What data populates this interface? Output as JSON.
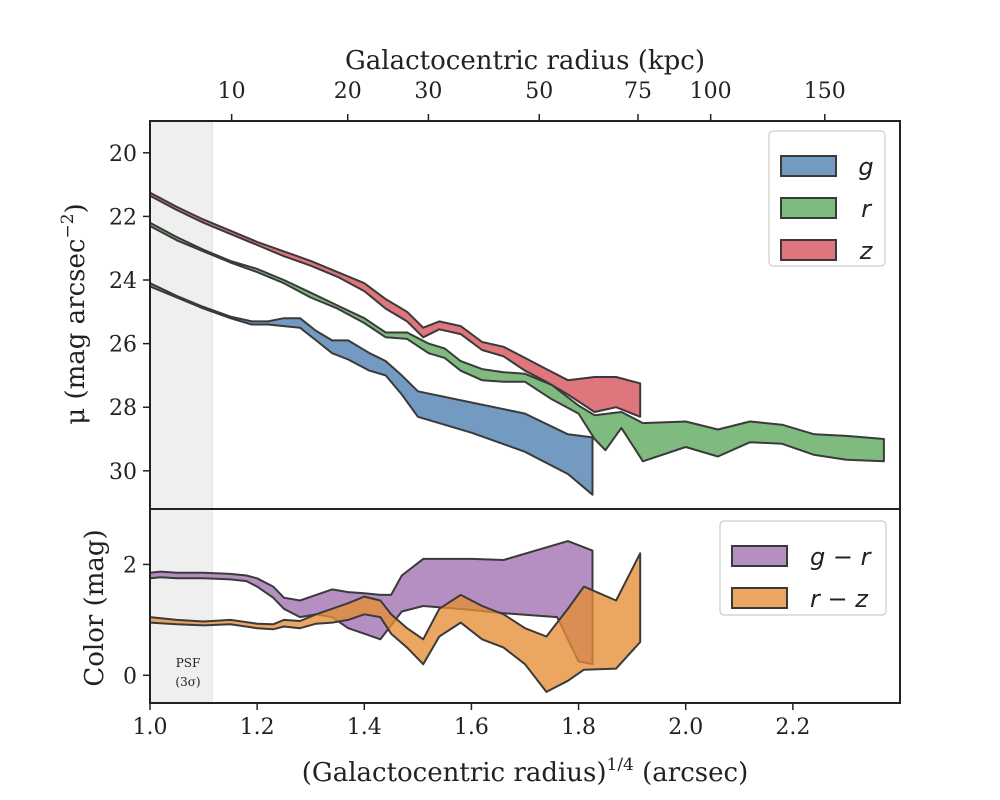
{
  "chart_data": [
    {
      "type": "area",
      "panel": "top",
      "xlabel": "(Galactocentric radius)",
      "xlabel_sup": "1/4",
      "xlabel_unit": " (arcsec)",
      "top_xlabel": "Galactocentric radius (kpc)",
      "ylabel": "μ (mag arcsec",
      "ylabel_sup": "−2",
      "ylabel_end": ")",
      "xlim": [
        1.0,
        2.4
      ],
      "ylim": [
        31.2,
        19.0
      ],
      "y_inverted": true,
      "yticks": [
        20,
        22,
        24,
        26,
        28,
        30
      ],
      "top_ticks": [
        {
          "label": "10",
          "x": 1.1524
        },
        {
          "label": "20",
          "x": 1.3691
        },
        {
          "label": "30",
          "x": 1.5197
        },
        {
          "label": "50",
          "x": 1.7266
        },
        {
          "label": "75",
          "x": 1.9109
        },
        {
          "label": "100",
          "x": 2.0466
        },
        {
          "label": "150",
          "x": 2.2596
        }
      ],
      "legend": {
        "placement": "top-right",
        "entries": [
          "g",
          "r",
          "z"
        ]
      },
      "series": [
        {
          "name": "g",
          "color": "#4c7fb0",
          "upper": [
            [
              1.0,
              24.1
            ],
            [
              1.05,
              24.5
            ],
            [
              1.1,
              24.85
            ],
            [
              1.15,
              25.15
            ],
            [
              1.19,
              25.3
            ],
            [
              1.22,
              25.3
            ],
            [
              1.25,
              25.2
            ],
            [
              1.28,
              25.2
            ],
            [
              1.31,
              25.6
            ],
            [
              1.34,
              25.9
            ],
            [
              1.37,
              25.9
            ],
            [
              1.41,
              26.3
            ],
            [
              1.44,
              26.55
            ],
            [
              1.47,
              27.0
            ],
            [
              1.5,
              27.5
            ],
            [
              1.6,
              27.85
            ],
            [
              1.7,
              28.2
            ],
            [
              1.78,
              28.85
            ],
            [
              1.826,
              28.95
            ]
          ],
          "lower": [
            [
              1.0,
              24.2
            ],
            [
              1.05,
              24.55
            ],
            [
              1.1,
              24.9
            ],
            [
              1.15,
              25.2
            ],
            [
              1.19,
              25.4
            ],
            [
              1.22,
              25.4
            ],
            [
              1.25,
              25.45
            ],
            [
              1.28,
              25.5
            ],
            [
              1.31,
              25.9
            ],
            [
              1.34,
              26.3
            ],
            [
              1.37,
              26.5
            ],
            [
              1.41,
              26.85
            ],
            [
              1.44,
              27.0
            ],
            [
              1.47,
              27.6
            ],
            [
              1.5,
              28.3
            ],
            [
              1.6,
              28.8
            ],
            [
              1.7,
              29.4
            ],
            [
              1.78,
              30.1
            ],
            [
              1.826,
              30.75
            ]
          ]
        },
        {
          "name": "r",
          "color": "#5ba85b",
          "upper": [
            [
              1.0,
              22.2
            ],
            [
              1.05,
              22.65
            ],
            [
              1.1,
              23.05
            ],
            [
              1.15,
              23.4
            ],
            [
              1.2,
              23.65
            ],
            [
              1.25,
              24.0
            ],
            [
              1.3,
              24.4
            ],
            [
              1.35,
              24.8
            ],
            [
              1.4,
              25.2
            ],
            [
              1.44,
              25.65
            ],
            [
              1.48,
              25.65
            ],
            [
              1.52,
              26.0
            ],
            [
              1.55,
              26.15
            ],
            [
              1.58,
              26.55
            ],
            [
              1.62,
              26.8
            ],
            [
              1.66,
              26.9
            ],
            [
              1.7,
              26.95
            ],
            [
              1.75,
              27.3
            ],
            [
              1.8,
              27.95
            ],
            [
              1.83,
              28.25
            ],
            [
              1.88,
              28.15
            ],
            [
              1.92,
              28.5
            ],
            [
              2.0,
              28.45
            ],
            [
              2.06,
              28.7
            ],
            [
              2.12,
              28.45
            ],
            [
              2.18,
              28.55
            ],
            [
              2.24,
              28.85
            ],
            [
              2.3,
              28.9
            ],
            [
              2.37,
              29.0
            ]
          ],
          "lower": [
            [
              1.0,
              22.3
            ],
            [
              1.05,
              22.75
            ],
            [
              1.1,
              23.1
            ],
            [
              1.15,
              23.45
            ],
            [
              1.2,
              23.75
            ],
            [
              1.25,
              24.1
            ],
            [
              1.3,
              24.55
            ],
            [
              1.35,
              24.9
            ],
            [
              1.4,
              25.35
            ],
            [
              1.44,
              25.8
            ],
            [
              1.48,
              25.85
            ],
            [
              1.52,
              26.3
            ],
            [
              1.55,
              26.45
            ],
            [
              1.58,
              26.85
            ],
            [
              1.62,
              27.15
            ],
            [
              1.66,
              27.2
            ],
            [
              1.7,
              27.2
            ],
            [
              1.75,
              27.75
            ],
            [
              1.8,
              28.2
            ],
            [
              1.83,
              29.0
            ],
            [
              1.85,
              29.35
            ],
            [
              1.88,
              28.65
            ],
            [
              1.92,
              29.7
            ],
            [
              2.0,
              29.25
            ],
            [
              2.06,
              29.55
            ],
            [
              2.12,
              29.1
            ],
            [
              2.18,
              29.15
            ],
            [
              2.24,
              29.5
            ],
            [
              2.3,
              29.65
            ],
            [
              2.37,
              29.7
            ]
          ]
        },
        {
          "name": "z",
          "color": "#d64e58",
          "upper": [
            [
              1.0,
              21.25
            ],
            [
              1.05,
              21.7
            ],
            [
              1.1,
              22.1
            ],
            [
              1.15,
              22.45
            ],
            [
              1.2,
              22.8
            ],
            [
              1.25,
              23.1
            ],
            [
              1.3,
              23.4
            ],
            [
              1.35,
              23.75
            ],
            [
              1.4,
              24.1
            ],
            [
              1.44,
              24.6
            ],
            [
              1.48,
              25.0
            ],
            [
              1.51,
              25.5
            ],
            [
              1.54,
              25.3
            ],
            [
              1.58,
              25.45
            ],
            [
              1.62,
              25.95
            ],
            [
              1.66,
              26.1
            ],
            [
              1.7,
              26.45
            ],
            [
              1.74,
              26.8
            ],
            [
              1.78,
              27.15
            ],
            [
              1.83,
              27.05
            ],
            [
              1.87,
              27.05
            ],
            [
              1.915,
              27.25
            ]
          ],
          "lower": [
            [
              1.0,
              21.35
            ],
            [
              1.05,
              21.8
            ],
            [
              1.1,
              22.2
            ],
            [
              1.15,
              22.55
            ],
            [
              1.2,
              22.9
            ],
            [
              1.25,
              23.25
            ],
            [
              1.3,
              23.55
            ],
            [
              1.35,
              23.9
            ],
            [
              1.4,
              24.35
            ],
            [
              1.44,
              24.9
            ],
            [
              1.48,
              25.3
            ],
            [
              1.51,
              25.8
            ],
            [
              1.54,
              25.55
            ],
            [
              1.58,
              25.7
            ],
            [
              1.62,
              26.2
            ],
            [
              1.66,
              26.4
            ],
            [
              1.7,
              26.85
            ],
            [
              1.74,
              27.2
            ],
            [
              1.78,
              27.6
            ],
            [
              1.83,
              28.15
            ],
            [
              1.87,
              28.0
            ],
            [
              1.915,
              28.3
            ]
          ]
        }
      ]
    },
    {
      "type": "area",
      "panel": "bottom",
      "ylabel": "Color (mag)",
      "xlim": [
        1.0,
        2.4
      ],
      "ylim": [
        -0.5,
        3.0
      ],
      "yticks": [
        0,
        2
      ],
      "xticks": [
        1.0,
        1.2,
        1.4,
        1.6,
        1.8,
        2.0,
        2.2
      ],
      "legend": {
        "placement": "top-right",
        "entries": [
          "g − r",
          "r − z"
        ]
      },
      "annotation": {
        "line1": "PSF",
        "line2": "(3σ)"
      },
      "psf_region": [
        1.0,
        1.116
      ],
      "series": [
        {
          "name": "g − r",
          "color": "#a070b0",
          "upper": [
            [
              1.0,
              1.85
            ],
            [
              1.02,
              1.87
            ],
            [
              1.05,
              1.85
            ],
            [
              1.1,
              1.85
            ],
            [
              1.15,
              1.83
            ],
            [
              1.18,
              1.8
            ],
            [
              1.2,
              1.75
            ],
            [
              1.23,
              1.6
            ],
            [
              1.25,
              1.4
            ],
            [
              1.28,
              1.35
            ],
            [
              1.31,
              1.45
            ],
            [
              1.34,
              1.55
            ],
            [
              1.37,
              1.5
            ],
            [
              1.4,
              1.48
            ],
            [
              1.43,
              1.45
            ],
            [
              1.45,
              1.45
            ],
            [
              1.47,
              1.8
            ],
            [
              1.51,
              2.1
            ],
            [
              1.6,
              2.1
            ],
            [
              1.66,
              2.08
            ],
            [
              1.78,
              2.42
            ],
            [
              1.826,
              2.25
            ]
          ],
          "lower": [
            [
              1.0,
              1.75
            ],
            [
              1.02,
              1.77
            ],
            [
              1.05,
              1.75
            ],
            [
              1.1,
              1.75
            ],
            [
              1.15,
              1.73
            ],
            [
              1.18,
              1.7
            ],
            [
              1.2,
              1.6
            ],
            [
              1.23,
              1.4
            ],
            [
              1.25,
              1.2
            ],
            [
              1.28,
              1.05
            ],
            [
              1.31,
              1.1
            ],
            [
              1.34,
              1.05
            ],
            [
              1.37,
              0.85
            ],
            [
              1.4,
              0.75
            ],
            [
              1.43,
              0.65
            ],
            [
              1.45,
              0.9
            ],
            [
              1.47,
              1.15
            ],
            [
              1.51,
              1.25
            ],
            [
              1.6,
              1.18
            ],
            [
              1.66,
              1.12
            ],
            [
              1.76,
              1.05
            ],
            [
              1.8,
              0.25
            ],
            [
              1.826,
              0.2
            ]
          ]
        },
        {
          "name": "r − z",
          "color": "#e58e35",
          "upper": [
            [
              1.0,
              1.05
            ],
            [
              1.05,
              1.0
            ],
            [
              1.1,
              0.97
            ],
            [
              1.15,
              1.0
            ],
            [
              1.2,
              0.93
            ],
            [
              1.23,
              0.92
            ],
            [
              1.25,
              1.0
            ],
            [
              1.28,
              0.98
            ],
            [
              1.31,
              1.1
            ],
            [
              1.34,
              1.2
            ],
            [
              1.37,
              1.3
            ],
            [
              1.4,
              1.42
            ],
            [
              1.43,
              1.35
            ],
            [
              1.45,
              1.1
            ],
            [
              1.48,
              0.85
            ],
            [
              1.51,
              0.65
            ],
            [
              1.54,
              1.2
            ],
            [
              1.58,
              1.45
            ],
            [
              1.62,
              1.25
            ],
            [
              1.66,
              1.1
            ],
            [
              1.7,
              0.85
            ],
            [
              1.74,
              0.7
            ],
            [
              1.78,
              1.2
            ],
            [
              1.81,
              1.6
            ],
            [
              1.87,
              1.35
            ],
            [
              1.915,
              2.2
            ]
          ],
          "lower": [
            [
              1.0,
              0.95
            ],
            [
              1.05,
              0.92
            ],
            [
              1.1,
              0.9
            ],
            [
              1.15,
              0.92
            ],
            [
              1.2,
              0.85
            ],
            [
              1.23,
              0.83
            ],
            [
              1.25,
              0.88
            ],
            [
              1.28,
              0.85
            ],
            [
              1.31,
              0.93
            ],
            [
              1.34,
              0.95
            ],
            [
              1.37,
              1.0
            ],
            [
              1.4,
              1.1
            ],
            [
              1.43,
              1.05
            ],
            [
              1.45,
              0.75
            ],
            [
              1.48,
              0.5
            ],
            [
              1.51,
              0.2
            ],
            [
              1.54,
              0.7
            ],
            [
              1.58,
              0.95
            ],
            [
              1.62,
              0.65
            ],
            [
              1.66,
              0.5
            ],
            [
              1.7,
              0.2
            ],
            [
              1.74,
              -0.3
            ],
            [
              1.78,
              -0.1
            ],
            [
              1.81,
              0.1
            ],
            [
              1.87,
              0.12
            ],
            [
              1.915,
              0.6
            ]
          ]
        }
      ]
    }
  ]
}
